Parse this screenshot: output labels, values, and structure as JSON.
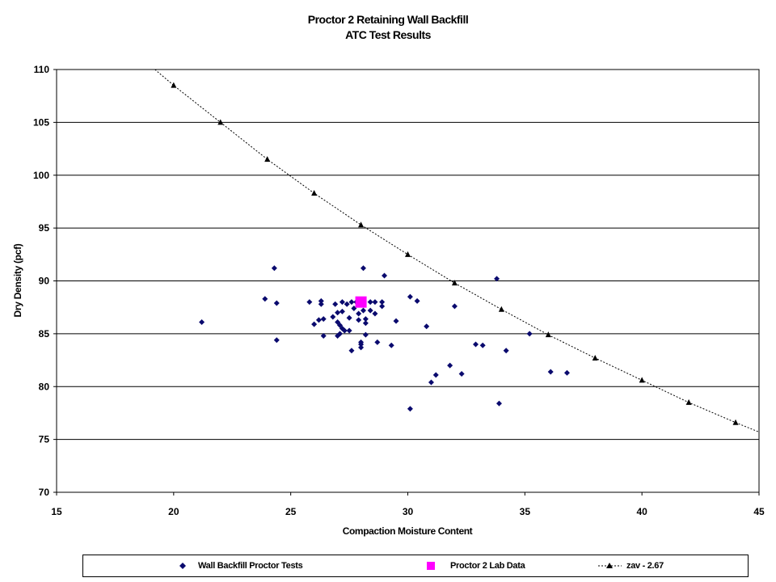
{
  "chart_data": {
    "type": "scatter",
    "title": "Proctor 2 Retaining Wall Backfill",
    "subtitle": "ATC Test Results",
    "xlabel": "Compaction Moisture Content",
    "ylabel": "Dry Density  (pcf)",
    "xlim": [
      15,
      45
    ],
    "ylim": [
      70,
      110
    ],
    "x_ticks": [
      15,
      20,
      25,
      30,
      35,
      40,
      45
    ],
    "y_ticks": [
      70,
      75,
      80,
      85,
      90,
      95,
      100,
      105,
      110
    ],
    "grid": "horizontal major",
    "legend_position": "bottom",
    "series": [
      {
        "name": "Wall Backfill Proctor Tests",
        "marker": "diamond",
        "color": "#0a0a6e",
        "points": [
          [
            21.2,
            86.1
          ],
          [
            23.9,
            88.3
          ],
          [
            24.3,
            91.2
          ],
          [
            24.4,
            87.9
          ],
          [
            24.4,
            84.4
          ],
          [
            25.8,
            88.0
          ],
          [
            26.0,
            85.9
          ],
          [
            26.2,
            86.3
          ],
          [
            26.3,
            87.8
          ],
          [
            26.3,
            88.1
          ],
          [
            26.4,
            86.4
          ],
          [
            26.4,
            84.8
          ],
          [
            26.8,
            86.6
          ],
          [
            26.9,
            87.8
          ],
          [
            27.0,
            86.1
          ],
          [
            27.0,
            87.0
          ],
          [
            27.1,
            85.8
          ],
          [
            27.0,
            84.8
          ],
          [
            27.1,
            85.0
          ],
          [
            27.2,
            88.0
          ],
          [
            27.2,
            87.1
          ],
          [
            27.2,
            85.5
          ],
          [
            27.3,
            85.3
          ],
          [
            27.4,
            87.8
          ],
          [
            27.5,
            86.5
          ],
          [
            27.5,
            85.3
          ],
          [
            27.6,
            88.0
          ],
          [
            27.7,
            87.4
          ],
          [
            27.6,
            83.4
          ],
          [
            27.8,
            88.0
          ],
          [
            27.9,
            86.9
          ],
          [
            27.9,
            86.3
          ],
          [
            28.0,
            84.0
          ],
          [
            28.0,
            84.2
          ],
          [
            28.0,
            83.7
          ],
          [
            28.1,
            91.2
          ],
          [
            28.1,
            87.2
          ],
          [
            28.2,
            86.4
          ],
          [
            28.2,
            86.0
          ],
          [
            28.2,
            84.9
          ],
          [
            28.4,
            88.0
          ],
          [
            28.4,
            87.2
          ],
          [
            28.6,
            88.0
          ],
          [
            28.6,
            86.9
          ],
          [
            28.7,
            84.2
          ],
          [
            28.9,
            88.0
          ],
          [
            28.9,
            87.6
          ],
          [
            29.0,
            90.5
          ],
          [
            29.3,
            83.9
          ],
          [
            29.5,
            86.2
          ],
          [
            30.1,
            88.5
          ],
          [
            30.1,
            77.9
          ],
          [
            30.4,
            88.1
          ],
          [
            30.8,
            85.7
          ],
          [
            31.0,
            80.4
          ],
          [
            31.2,
            81.1
          ],
          [
            31.8,
            82.0
          ],
          [
            32.0,
            87.6
          ],
          [
            32.3,
            81.2
          ],
          [
            32.9,
            84.0
          ],
          [
            33.2,
            83.9
          ],
          [
            33.8,
            90.2
          ],
          [
            33.9,
            78.4
          ],
          [
            34.2,
            83.4
          ],
          [
            35.2,
            85.0
          ],
          [
            36.1,
            81.4
          ],
          [
            36.8,
            81.3
          ]
        ]
      },
      {
        "name": "Proctor 2 Lab Data",
        "marker": "square",
        "color": "#ff00ff",
        "points": [
          [
            28.0,
            88.0
          ]
        ]
      },
      {
        "name": "zav - 2.67",
        "marker": "triangle",
        "line": "dotted",
        "color": "#000000",
        "points": [
          [
            20,
            108.5
          ],
          [
            22,
            105.0
          ],
          [
            24,
            101.5
          ],
          [
            26,
            98.3
          ],
          [
            28,
            95.3
          ],
          [
            30,
            92.5
          ],
          [
            32,
            89.8
          ],
          [
            34,
            87.3
          ],
          [
            36,
            84.9
          ],
          [
            38,
            82.7
          ],
          [
            40,
            80.6
          ],
          [
            42,
            78.5
          ],
          [
            44,
            76.6
          ]
        ],
        "line_extent": [
          [
            19.2,
            110.0
          ],
          [
            45.0,
            75.7
          ]
        ]
      }
    ]
  }
}
